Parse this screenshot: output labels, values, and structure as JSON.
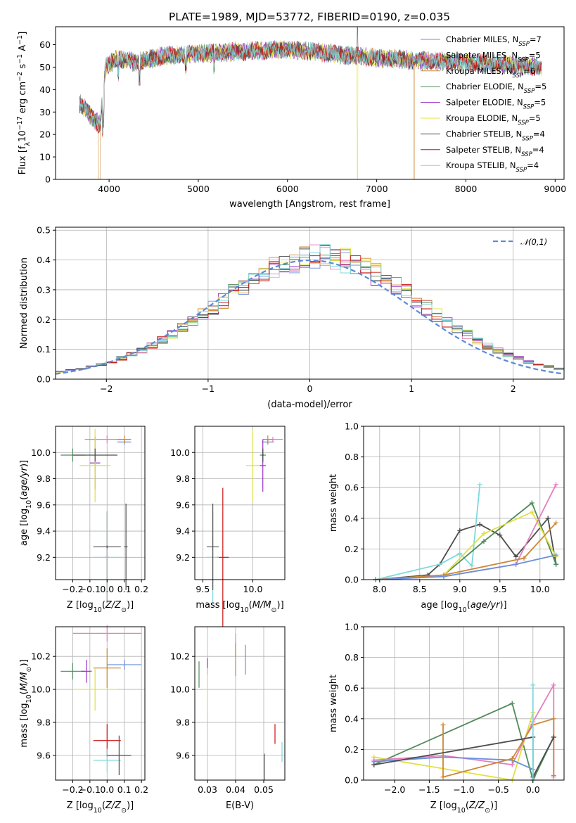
{
  "figure": {
    "title": "PLATE=1989, MJD=53772, FIBERID=0190, z=0.035"
  },
  "chart_data": [
    {
      "id": "spectrum",
      "type": "line",
      "title": "PLATE=1989, MJD=53772, FIBERID=0190, z=0.035",
      "xlabel": "wavelength [Angstrom, rest frame]",
      "ylabel": "Flux [f_λ10^-17 erg cm^-2 s^-1 A^-1]",
      "xlim": [
        3400,
        9100
      ],
      "ylim": [
        0,
        68
      ],
      "xticks": [
        4000,
        5000,
        6000,
        7000,
        8000,
        9000
      ],
      "yticks": [
        0,
        10,
        20,
        30,
        40,
        50,
        60
      ],
      "grid": false,
      "legend_position": "upper right",
      "wavelength_range": [
        3670,
        8850
      ],
      "envelope_points": [
        [
          3670,
          34
        ],
        [
          3800,
          28
        ],
        [
          3900,
          24
        ],
        [
          3960,
          50
        ],
        [
          4100,
          54
        ],
        [
          4300,
          52
        ],
        [
          4600,
          55
        ],
        [
          5000,
          56
        ],
        [
          5500,
          57
        ],
        [
          6000,
          58
        ],
        [
          6500,
          56
        ],
        [
          7000,
          54
        ],
        [
          7500,
          53
        ],
        [
          8000,
          52
        ],
        [
          8500,
          51
        ],
        [
          8850,
          50
        ]
      ],
      "series": [
        {
          "name": "Chabrier MILES, N_SSP=7",
          "color": "#6a8fdc"
        },
        {
          "name": "Salpeter MILES, N_SSP=5",
          "color": "#e57fbf"
        },
        {
          "name": "Kroupa MILES, N_SSP=6",
          "color": "#cc8833"
        },
        {
          "name": "Chabrier ELODIE, N_SSP=5",
          "color": "#4f8a5a"
        },
        {
          "name": "Salpeter ELODIE, N_SSP=5",
          "color": "#9b30c8"
        },
        {
          "name": "Kroupa ELODIE, N_SSP=5",
          "color": "#e0e040"
        },
        {
          "name": "Chabrier STELIB, N_SSP=4",
          "color": "#4d4d4d"
        },
        {
          "name": "Salpeter STELIB, N_SSP=4",
          "color": "#cc1111"
        },
        {
          "name": "Kroupa STELIB, N_SSP=4",
          "color": "#7fd8dc"
        }
      ]
    },
    {
      "id": "residuals",
      "type": "histogram",
      "xlabel": "(data-model)/error",
      "ylabel": "Normed distribution",
      "xlim": [
        -2.5,
        2.5
      ],
      "ylim": [
        0,
        0.51
      ],
      "xticks": [
        -2,
        -1,
        0,
        1,
        2
      ],
      "yticks": [
        0.0,
        0.1,
        0.2,
        0.3,
        0.4,
        0.5
      ],
      "grid": true,
      "legend": {
        "label": "𝒩(0,1)",
        "position": "upper right",
        "color": "#5b8bd6",
        "style": "dashed"
      },
      "bin_width": 0.1
    },
    {
      "id": "age-vs-z",
      "type": "errorbar",
      "xlabel": "Z [log10(Z/Z⊙)]",
      "ylabel": "age  [log10(age/yr)]",
      "xlim": [
        -0.3,
        0.22
      ],
      "ylim": [
        9.03,
        10.2
      ],
      "xticks": [
        -0.2,
        -0.1,
        0.0,
        0.1,
        0.2
      ],
      "yticks": [
        9.2,
        9.4,
        9.6,
        9.8,
        10.0
      ],
      "grid": true,
      "points": [
        {
          "color": "#e57fbf",
          "x": 0.0,
          "y": 10.1,
          "xerr": 0.13,
          "yerr": 0.03
        },
        {
          "color": "#6a8fdc",
          "x": 0.1,
          "y": 10.08,
          "xerr": 0.04,
          "yerr": 0.02
        },
        {
          "color": "#cc8833",
          "x": 0.1,
          "y": 10.1,
          "xerr": 0.04,
          "yerr": 0.03
        },
        {
          "color": "#4f8a5a",
          "x": -0.2,
          "y": 9.98,
          "xerr": 0.07,
          "yerr": 0.05
        },
        {
          "color": "#9b30c8",
          "x": -0.07,
          "y": 9.92,
          "xerr": 0.03,
          "yerr": 0.2
        },
        {
          "color": "#e0e040",
          "x": -0.07,
          "y": 9.9,
          "xerr": 0.09,
          "yerr": 0.28
        },
        {
          "color": "#4d4d4d",
          "x": -0.07,
          "y": 9.98,
          "xerr": 0.13,
          "yerr": 0.05
        },
        {
          "color": "#cc1111",
          "x": 0.0,
          "y": 9.2,
          "xerr": 0.01,
          "yerr": 0.35
        },
        {
          "color": "#7fd8dc",
          "x": 0.0,
          "y": 9.2,
          "xerr": 0.08,
          "yerr": 0.35
        },
        {
          "color": "#4d4d4d",
          "x": 0.0,
          "y": 9.28,
          "xerr": 0.08,
          "yerr": 0.01
        },
        {
          "color": "#4d4d4d",
          "x": 0.11,
          "y": 9.28,
          "xerr": 0.01,
          "yerr": 0.33
        }
      ]
    },
    {
      "id": "age-vs-mass",
      "type": "errorbar",
      "xlabel": "mass [log10(M/M⊙)]",
      "ylabel": "",
      "xlim": [
        9.42,
        10.32
      ],
      "ylim": [
        9.03,
        10.2
      ],
      "xticks": [
        9.5,
        10.0
      ],
      "yticks": [
        9.2,
        9.4,
        9.6,
        9.8,
        10.0
      ],
      "grid": true,
      "points": [
        {
          "color": "#e57fbf",
          "x": 10.2,
          "y": 10.1,
          "xerr": 0.1,
          "yerr": 0.02
        },
        {
          "color": "#6a8fdc",
          "x": 10.15,
          "y": 10.08,
          "xerr": 0.06,
          "yerr": 0.02
        },
        {
          "color": "#cc8833",
          "x": 10.15,
          "y": 10.1,
          "xerr": 0.05,
          "yerr": 0.03
        },
        {
          "color": "#4f8a5a",
          "x": 10.1,
          "y": 9.98,
          "xerr": 0.03,
          "yerr": 0.05
        },
        {
          "color": "#9b30c8",
          "x": 10.1,
          "y": 9.9,
          "xerr": 0.03,
          "yerr": 0.2
        },
        {
          "color": "#e0e040",
          "x": 10.0,
          "y": 9.9,
          "xerr": 0.07,
          "yerr": 0.28
        },
        {
          "color": "#4d4d4d",
          "x": 10.1,
          "y": 9.98,
          "xerr": 0.01,
          "yerr": 0.05
        },
        {
          "color": "#cc1111",
          "x": 9.7,
          "y": 9.2,
          "xerr": 0.06,
          "yerr": 0.53
        },
        {
          "color": "#7fd8dc",
          "x": 9.6,
          "y": 9.2,
          "xerr": 0.06,
          "yerr": 0.35
        },
        {
          "color": "#4d4d4d",
          "x": 9.6,
          "y": 9.28,
          "xerr": 0.06,
          "yerr": 0.33
        }
      ]
    },
    {
      "id": "weight-vs-age",
      "type": "line",
      "xlabel": "age  [log10(age/yr)]",
      "ylabel": "mass weight",
      "xlim": [
        7.8,
        10.3
      ],
      "ylim": [
        0,
        1.0
      ],
      "xticks": [
        8.0,
        8.5,
        9.0,
        9.5,
        10.0
      ],
      "yticks": [
        0.0,
        0.2,
        0.4,
        0.6,
        0.8,
        1.0
      ],
      "grid": true,
      "series": [
        {
          "color": "#4d4d4d",
          "x": [
            7.95,
            8.6,
            8.75,
            9.0,
            9.25,
            9.5,
            9.7,
            10.1,
            10.2
          ],
          "y": [
            0.0,
            0.03,
            0.1,
            0.32,
            0.36,
            0.29,
            0.15,
            0.4,
            0.1
          ]
        },
        {
          "color": "#7fd8dc",
          "x": [
            7.95,
            8.75,
            9.0,
            9.15,
            9.25
          ],
          "y": [
            0.0,
            0.1,
            0.17,
            0.09,
            0.62
          ]
        },
        {
          "color": "#4f8a5a",
          "x": [
            7.95,
            8.8,
            9.3,
            9.9,
            10.2
          ],
          "y": [
            0.0,
            0.03,
            0.25,
            0.5,
            0.1
          ]
        },
        {
          "color": "#e0e040",
          "x": [
            7.95,
            8.8,
            9.3,
            9.9,
            10.2
          ],
          "y": [
            0.0,
            0.03,
            0.3,
            0.44,
            0.15
          ]
        },
        {
          "color": "#e57fbf",
          "x": [
            7.95,
            8.8,
            9.7,
            10.2
          ],
          "y": [
            0.0,
            0.02,
            0.1,
            0.62
          ]
        },
        {
          "color": "#cc8833",
          "x": [
            7.95,
            8.8,
            9.8,
            10.2
          ],
          "y": [
            0.0,
            0.03,
            0.14,
            0.37
          ]
        },
        {
          "color": "#6a8fdc",
          "x": [
            7.95,
            8.8,
            9.7,
            10.2
          ],
          "y": [
            0.0,
            0.02,
            0.1,
            0.16
          ]
        }
      ]
    },
    {
      "id": "mass-vs-z",
      "type": "errorbar",
      "xlabel": "Z [log10(Z/Z⊙)]",
      "ylabel": "mass [log10(M/M⊙)]",
      "xlim": [
        -0.3,
        0.22
      ],
      "ylim": [
        9.45,
        10.38
      ],
      "xticks": [
        -0.2,
        -0.1,
        0.0,
        0.1,
        0.2
      ],
      "yticks": [
        9.6,
        9.8,
        10.0,
        10.2
      ],
      "grid": true,
      "points": [
        {
          "color": "#e57fbf",
          "x": 0.0,
          "y": 10.34,
          "xerr": 0.2,
          "yerr": 0.05
        },
        {
          "color": "#6a8fdc",
          "x": 0.1,
          "y": 10.15,
          "xerr": 0.1,
          "yerr": 0.03
        },
        {
          "color": "#cc8833",
          "x": 0.0,
          "y": 10.13,
          "xerr": 0.08,
          "yerr": 0.12
        },
        {
          "color": "#4f8a5a",
          "x": -0.2,
          "y": 10.11,
          "xerr": 0.07,
          "yerr": 0.05
        },
        {
          "color": "#9b30c8",
          "x": -0.12,
          "y": 10.11,
          "xerr": 0.03,
          "yerr": 0.07
        },
        {
          "color": "#e0e040",
          "x": -0.07,
          "y": 10.0,
          "xerr": 0.13,
          "yerr": 0.13
        },
        {
          "color": "#cc1111",
          "x": 0.0,
          "y": 9.69,
          "xerr": 0.08,
          "yerr": 0.1
        },
        {
          "color": "#7fd8dc",
          "x": 0.0,
          "y": 9.57,
          "xerr": 0.08,
          "yerr": 0.07
        },
        {
          "color": "#4d4d4d",
          "x": 0.07,
          "y": 9.6,
          "xerr": 0.07,
          "yerr": 0.12
        }
      ]
    },
    {
      "id": "mass-vs-ebv",
      "type": "errorbar",
      "xlabel": "E(B-V)",
      "ylabel": "",
      "xlim": [
        0.0255,
        0.0575
      ],
      "ylim": [
        9.45,
        10.38
      ],
      "xticks": [
        0.03,
        0.04,
        0.05
      ],
      "yticks": [
        9.6,
        9.8,
        10.0,
        10.2
      ],
      "grid": true,
      "points": [
        {
          "color": "#e57fbf",
          "x": 0.04,
          "y": 10.27,
          "xerr": 0,
          "yerr": 0.07
        },
        {
          "color": "#6a8fdc",
          "x": 0.0435,
          "y": 10.18,
          "xerr": 0,
          "yerr": 0.09
        },
        {
          "color": "#cc8833",
          "x": 0.04,
          "y": 10.18,
          "xerr": 0,
          "yerr": 0.1
        },
        {
          "color": "#4f8a5a",
          "x": 0.027,
          "y": 10.09,
          "xerr": 0,
          "yerr": 0.08
        },
        {
          "color": "#9b30c8",
          "x": 0.03,
          "y": 10.14,
          "xerr": 0,
          "yerr": 0.05
        },
        {
          "color": "#e0e040",
          "x": 0.03,
          "y": 10.0,
          "xerr": 0,
          "yerr": 0.13
        },
        {
          "color": "#cc1111",
          "x": 0.054,
          "y": 9.73,
          "xerr": 0,
          "yerr": 0.06
        },
        {
          "color": "#7fd8dc",
          "x": 0.0565,
          "y": 9.62,
          "xerr": 0,
          "yerr": 0.06
        },
        {
          "color": "#4d4d4d",
          "x": 0.0502,
          "y": 9.53,
          "xerr": 0,
          "yerr": 0.08
        }
      ]
    },
    {
      "id": "weight-vs-z",
      "type": "line",
      "xlabel": "Z [log10(Z/Z⊙)]",
      "ylabel": "mass weight",
      "xlim": [
        -2.45,
        0.45
      ],
      "ylim": [
        0,
        1.0
      ],
      "xticks": [
        -2.0,
        -1.5,
        -1.0,
        -0.5,
        0.0
      ],
      "yticks": [
        0.0,
        0.2,
        0.4,
        0.6,
        0.8,
        1.0
      ],
      "grid": true,
      "series": [
        {
          "color": "#4f8a5a",
          "x": [
            -2.3,
            -0.3,
            0.0,
            0.3
          ],
          "y": [
            0.1,
            0.5,
            0.0,
            0.28
          ]
        },
        {
          "color": "#e0e040",
          "x": [
            -2.3,
            -0.3,
            0.0
          ],
          "y": [
            0.15,
            0.0,
            0.44
          ]
        },
        {
          "color": "#e57fbf",
          "x": [
            -2.3,
            -1.3,
            -0.3,
            0.0,
            0.3,
            0.3
          ],
          "y": [
            0.13,
            0.16,
            0.1,
            0.38,
            0.62,
            0.02
          ]
        },
        {
          "color": "#6a8fdc",
          "x": [
            -2.3,
            -1.3,
            -0.3,
            0.0
          ],
          "y": [
            0.12,
            0.15,
            0.13,
            0.07
          ]
        },
        {
          "color": "#cc8833",
          "x": [
            -1.3,
            -1.3,
            -0.3,
            0.0,
            0.3,
            0.3
          ],
          "y": [
            0.36,
            0.02,
            0.14,
            0.36,
            0.4,
            0.03
          ]
        },
        {
          "color": "#4d4d4d",
          "x": [
            -2.3,
            0.0,
            0.0,
            0.3
          ],
          "y": [
            0.1,
            0.28,
            0.02,
            0.28
          ]
        },
        {
          "color": "#7fd8dc",
          "x": [
            0.0,
            0.0
          ],
          "y": [
            0.62,
            0.0
          ]
        }
      ]
    }
  ]
}
